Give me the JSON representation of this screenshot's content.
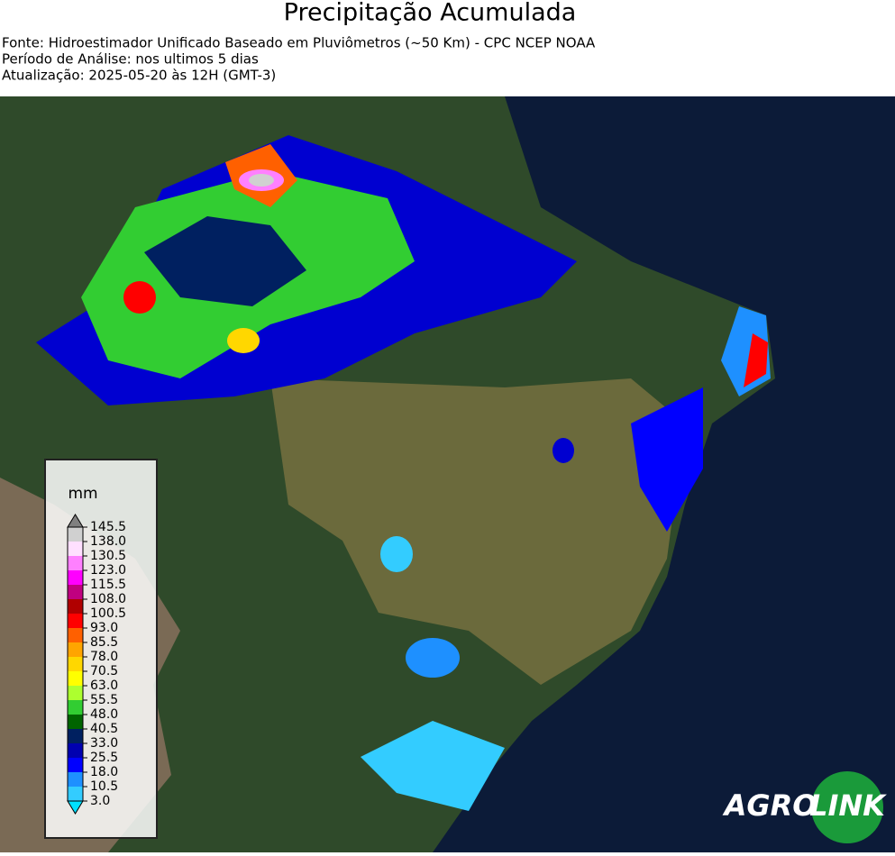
{
  "header": {
    "title": "Precipitação Acumulada",
    "lines": [
      "Fonte: Hidroestimador Unificado Baseado em Pluviômetros (~50 Km) - CPC NCEP NOAA",
      "Período de Análise: nos ultimos 5 dias",
      "Atualização: 2025-05-20 às 12H (GMT-3)"
    ]
  },
  "legend": {
    "title": "mm",
    "ticks": [
      {
        "value": 3,
        "label": "3.0"
      },
      {
        "value": 10.5,
        "label": "10.5"
      },
      {
        "value": 18,
        "label": "18.0"
      },
      {
        "value": 25.5,
        "label": "25.5"
      },
      {
        "value": 33,
        "label": "33.0"
      },
      {
        "value": 40.5,
        "label": "40.5"
      },
      {
        "value": 48,
        "label": "48.0"
      },
      {
        "value": 55.5,
        "label": "55.5"
      },
      {
        "value": 63,
        "label": "63.0"
      },
      {
        "value": 70.5,
        "label": "70.5"
      },
      {
        "value": 78,
        "label": "78.0"
      },
      {
        "value": 85.5,
        "label": "85.5"
      },
      {
        "value": 93,
        "label": "93.0"
      },
      {
        "value": 100.5,
        "label": "100.5"
      },
      {
        "value": 108,
        "label": "108.0"
      },
      {
        "value": 115.5,
        "label": "115.5"
      },
      {
        "value": 123,
        "label": "123.0"
      },
      {
        "value": 130.5,
        "label": "130.5"
      },
      {
        "value": 138,
        "label": "138.0"
      },
      {
        "value": 145.5,
        "label": "145.5"
      }
    ],
    "colors": [
      "#33ccff",
      "#1e90ff",
      "#0000ff",
      "#0000b0",
      "#002060",
      "#006400",
      "#32cd32",
      "#adff2f",
      "#ffff00",
      "#ffd700",
      "#ffa500",
      "#ff6000",
      "#ff0000",
      "#b00000",
      "#c00080",
      "#ff00ff",
      "#ff80ff",
      "#ffe0ff",
      "#d0d0d0"
    ],
    "under_color": "#00e0ff",
    "over_color": "#808080"
  },
  "logo": {
    "left": "AGRO",
    "right": "LINK"
  }
}
